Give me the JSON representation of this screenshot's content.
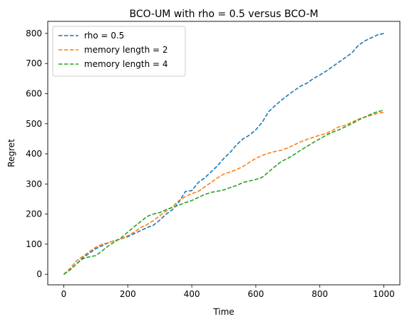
{
  "chart_data": {
    "type": "line",
    "title": "BCO-UM with rho = 0.5 versus BCO-M",
    "xlabel": "Time",
    "ylabel": "Regret",
    "xlim": [
      -50,
      1050
    ],
    "ylim": [
      -35,
      840
    ],
    "xticks": [
      0,
      200,
      400,
      600,
      800,
      1000
    ],
    "yticks": [
      0,
      100,
      200,
      300,
      400,
      500,
      600,
      700,
      800
    ],
    "grid": false,
    "legend_position": "top-left",
    "line_style": "dashed",
    "series": [
      {
        "name": "rho = 0.5",
        "color": "#1f77b4",
        "x": [
          0,
          20,
          40,
          60,
          80,
          100,
          120,
          140,
          160,
          180,
          200,
          220,
          240,
          260,
          280,
          300,
          320,
          340,
          360,
          380,
          400,
          420,
          440,
          460,
          480,
          500,
          520,
          540,
          560,
          580,
          600,
          620,
          640,
          660,
          680,
          700,
          720,
          740,
          760,
          780,
          800,
          820,
          840,
          860,
          880,
          900,
          920,
          940,
          960,
          980,
          1000
        ],
        "values": [
          0,
          15,
          35,
          55,
          70,
          85,
          95,
          105,
          112,
          118,
          125,
          135,
          145,
          155,
          163,
          180,
          200,
          215,
          240,
          275,
          278,
          305,
          320,
          340,
          360,
          385,
          405,
          430,
          450,
          462,
          480,
          505,
          540,
          560,
          578,
          595,
          610,
          625,
          635,
          650,
          662,
          675,
          690,
          705,
          720,
          735,
          760,
          775,
          785,
          795,
          800
        ]
      },
      {
        "name": "memory length = 2",
        "color": "#ff7f0e",
        "x": [
          0,
          20,
          40,
          60,
          80,
          100,
          120,
          140,
          160,
          180,
          200,
          220,
          240,
          260,
          280,
          300,
          320,
          340,
          360,
          380,
          400,
          420,
          440,
          460,
          480,
          500,
          520,
          540,
          560,
          580,
          600,
          620,
          640,
          660,
          680,
          700,
          720,
          740,
          760,
          780,
          800,
          820,
          840,
          860,
          880,
          900,
          920,
          940,
          960,
          980,
          1000
        ],
        "values": [
          0,
          20,
          45,
          60,
          75,
          90,
          100,
          105,
          112,
          118,
          128,
          140,
          155,
          165,
          178,
          195,
          210,
          225,
          245,
          258,
          268,
          275,
          290,
          305,
          320,
          333,
          340,
          348,
          358,
          372,
          385,
          395,
          402,
          408,
          412,
          420,
          430,
          440,
          448,
          455,
          462,
          468,
          478,
          490,
          495,
          505,
          515,
          522,
          528,
          535,
          538
        ]
      },
      {
        "name": "memory length = 4",
        "color": "#2ca02c",
        "x": [
          0,
          20,
          40,
          60,
          80,
          100,
          120,
          140,
          160,
          180,
          200,
          220,
          240,
          260,
          280,
          300,
          320,
          340,
          360,
          380,
          400,
          420,
          440,
          460,
          480,
          500,
          520,
          540,
          560,
          580,
          600,
          620,
          640,
          660,
          680,
          700,
          720,
          740,
          760,
          780,
          800,
          820,
          840,
          860,
          880,
          900,
          920,
          940,
          960,
          980,
          1000
        ],
        "values": [
          0,
          15,
          35,
          52,
          58,
          62,
          78,
          95,
          108,
          122,
          140,
          158,
          175,
          192,
          200,
          205,
          215,
          222,
          230,
          238,
          245,
          255,
          265,
          272,
          276,
          280,
          288,
          295,
          305,
          310,
          315,
          322,
          340,
          358,
          375,
          385,
          398,
          412,
          425,
          438,
          450,
          462,
          472,
          480,
          490,
          500,
          512,
          522,
          532,
          540,
          545
        ]
      }
    ]
  }
}
